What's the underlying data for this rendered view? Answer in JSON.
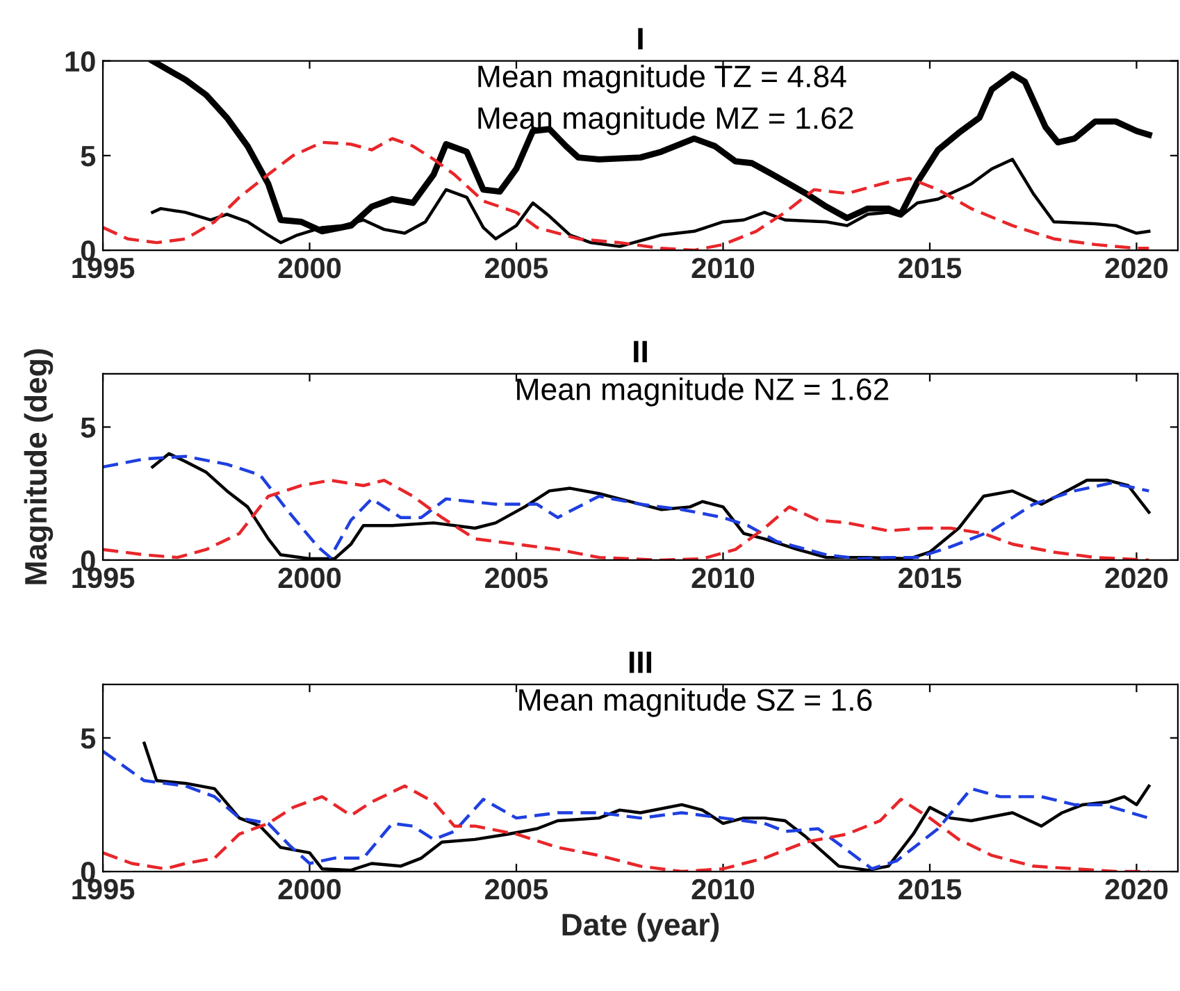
{
  "chart_data": [
    {
      "type": "line",
      "title": "I",
      "xlim": [
        1995,
        2021
      ],
      "xticks": [
        1995,
        2000,
        2005,
        2010,
        2015,
        2020
      ],
      "ylim": [
        0,
        10
      ],
      "yticks": [
        0,
        5,
        10
      ],
      "grid": false,
      "legend": false,
      "annotations": [
        "Mean magnitude TZ = 4.84",
        "Mean magnitude MZ = 1.62"
      ],
      "series": [
        {
          "color": "#000000",
          "line_style": "solid",
          "x": [
            1996.2,
            1997,
            1997.5,
            1998,
            1998.5,
            1999,
            1999.3,
            1999.8,
            2000.3,
            2001,
            2001.5,
            2002,
            2002.5,
            2003,
            2003.3,
            2003.8,
            2004.2,
            2004.6,
            2005,
            2005.4,
            2005.8,
            2006.2,
            2006.5,
            2007,
            2008,
            2008.5,
            2009.3,
            2009.8,
            2010.3,
            2010.7,
            2011.2,
            2012,
            2012.5,
            2013,
            2013.5,
            2014,
            2014.3,
            2014.7,
            2015.2,
            2015.7,
            2016.2,
            2016.5,
            2017,
            2017.3,
            2017.8,
            2018.1,
            2018.5,
            2019,
            2019.5,
            2020,
            2020.3
          ],
          "values": [
            10,
            9,
            8.2,
            7,
            5.5,
            3.5,
            1.6,
            1.5,
            1.0,
            1.3,
            2.3,
            2.7,
            2.5,
            4,
            5.6,
            5.2,
            3.2,
            3.1,
            4.3,
            6.3,
            6.4,
            5.5,
            4.9,
            4.8,
            4.9,
            5.2,
            5.9,
            5.5,
            4.7,
            4.6,
            4.0,
            3.0,
            2.3,
            1.7,
            2.2,
            2.2,
            1.9,
            3.6,
            5.3,
            6.2,
            7.0,
            8.5,
            9.3,
            8.9,
            6.5,
            5.7,
            5.9,
            6.8,
            6.8,
            6.3,
            6.1
          ]
        },
        {
          "color": "#000000",
          "line_style": "solid",
          "x": [
            1996.2,
            1996.4,
            1997,
            1997.6,
            1998,
            1998.5,
            1999,
            1999.3,
            1999.7,
            2000.3,
            2000.8,
            2001.3,
            2001.8,
            2002.3,
            2002.8,
            2003.3,
            2003.8,
            2004.2,
            2004.5,
            2005,
            2005.4,
            2005.8,
            2006.3,
            2006.8,
            2007.5,
            2008,
            2008.5,
            2009.3,
            2010,
            2010.5,
            2011,
            2011.5,
            2012.5,
            2013,
            2013.5,
            2014,
            2014.3,
            2014.7,
            2015.2,
            2015.7,
            2016,
            2016.5,
            2017,
            2017.5,
            2018,
            2019,
            2019.5,
            2020,
            2020.3
          ],
          "values": [
            2,
            2.2,
            2.0,
            1.6,
            1.9,
            1.5,
            0.8,
            0.4,
            0.8,
            1.2,
            1.3,
            1.6,
            1.1,
            0.9,
            1.5,
            3.2,
            2.8,
            1.2,
            0.6,
            1.3,
            2.5,
            1.8,
            0.8,
            0.4,
            0.2,
            0.5,
            0.8,
            1.0,
            1.5,
            1.6,
            2.0,
            1.6,
            1.5,
            1.3,
            1.9,
            2.0,
            1.8,
            2.5,
            2.7,
            3.2,
            3.5,
            4.3,
            4.8,
            3.0,
            1.5,
            1.4,
            1.3,
            0.9,
            1.0
          ]
        },
        {
          "color": "#e8262a",
          "line_style": "dashed",
          "x": [
            1995,
            1995.6,
            1996.3,
            1997,
            1997.7,
            1998.3,
            1999,
            1999.6,
            2000.3,
            2001,
            2001.5,
            2002,
            2002.5,
            2003,
            2003.5,
            2004.2,
            2005,
            2005.5,
            2006.5,
            2007.5,
            2008.5,
            2009.3,
            2010,
            2010.8,
            2011.5,
            2012.2,
            2013,
            2014,
            2014.5,
            2015.2,
            2016,
            2017,
            2018,
            2019,
            2020,
            2020.3
          ],
          "values": [
            1.2,
            0.6,
            0.4,
            0.6,
            1.5,
            2.8,
            4.0,
            5.0,
            5.7,
            5.6,
            5.3,
            5.9,
            5.5,
            4.8,
            4.0,
            2.6,
            2.0,
            1.2,
            0.6,
            0.4,
            0.1,
            0.0,
            0.3,
            1.0,
            2.0,
            3.2,
            3.0,
            3.6,
            3.8,
            3.2,
            2.2,
            1.3,
            0.6,
            0.3,
            0.1,
            0.1
          ]
        }
      ]
    },
    {
      "type": "line",
      "title": "II",
      "ylabel": "Magnitude (deg)",
      "xlim": [
        1995,
        2021
      ],
      "xticks": [
        1995,
        2000,
        2005,
        2010,
        2015,
        2020
      ],
      "ylim": [
        0,
        7
      ],
      "yticks": [
        0,
        5
      ],
      "grid": false,
      "legend": false,
      "annotations": [
        "Mean magnitude NZ = 1.62"
      ],
      "series": [
        {
          "color": "#000000",
          "line_style": "solid",
          "x": [
            1996.2,
            1996.6,
            1997,
            1997.5,
            1998,
            1998.5,
            1999,
            1999.3,
            2000,
            2000.6,
            2001,
            2001.3,
            2002,
            2003,
            2004,
            2004.5,
            2005.2,
            2005.8,
            2006.3,
            2007,
            2007.5,
            2008.5,
            2009.2,
            2009.5,
            2010,
            2010.5,
            2011,
            2011.8,
            2012.5,
            2013.5,
            2014.5,
            2015,
            2015.7,
            2016.3,
            2017,
            2017.7,
            2018.2,
            2018.8,
            2019.3,
            2019.8,
            2020.3
          ],
          "values": [
            3.5,
            4.0,
            3.7,
            3.3,
            2.6,
            2.0,
            0.8,
            0.2,
            0.05,
            0.05,
            0.6,
            1.3,
            1.3,
            1.4,
            1.2,
            1.4,
            2.0,
            2.6,
            2.7,
            2.5,
            2.3,
            1.9,
            2.0,
            2.2,
            2.0,
            1.0,
            0.8,
            0.4,
            0.1,
            0.1,
            0.05,
            0.3,
            1.2,
            2.4,
            2.6,
            2.1,
            2.5,
            3.0,
            3.0,
            2.8,
            1.8
          ]
        },
        {
          "color": "#1f3fe0",
          "line_style": "dashed",
          "x": [
            1995,
            1996,
            1997,
            1998,
            1998.8,
            1999.5,
            2000.2,
            2000.5,
            2001,
            2001.5,
            2002.2,
            2002.7,
            2003.3,
            2004.5,
            2005.5,
            2006,
            2007,
            2008,
            2009,
            2010,
            2010.6,
            2011.3,
            2012.5,
            2013.3,
            2014,
            2014.7,
            2015.5,
            2016.5,
            2017.5,
            2018.5,
            2019.4,
            2020.3
          ],
          "values": [
            3.5,
            3.8,
            3.9,
            3.6,
            3.2,
            1.8,
            0.5,
            0.1,
            1.5,
            2.3,
            1.6,
            1.6,
            2.3,
            2.1,
            2.1,
            1.6,
            2.4,
            2.1,
            1.9,
            1.6,
            1.3,
            0.7,
            0.2,
            0.05,
            0.1,
            0.1,
            0.5,
            1.1,
            2.1,
            2.6,
            2.9,
            2.6
          ]
        },
        {
          "color": "#e8262a",
          "line_style": "dashed",
          "x": [
            1995,
            1996,
            1996.8,
            1997.5,
            1998.3,
            1999,
            1999.8,
            2000.5,
            2001.3,
            2001.8,
            2002.5,
            2003.2,
            2004,
            2005,
            2006,
            2007,
            2008.5,
            2009.5,
            2010.3,
            2011,
            2011.6,
            2012.3,
            2013,
            2014,
            2014.8,
            2015.5,
            2016.3,
            2017,
            2018,
            2019,
            2020.3
          ],
          "values": [
            0.4,
            0.2,
            0.1,
            0.4,
            1.0,
            2.4,
            2.8,
            3.0,
            2.8,
            3.0,
            2.4,
            1.6,
            0.8,
            0.6,
            0.4,
            0.1,
            0.0,
            0.05,
            0.4,
            1.2,
            2.0,
            1.5,
            1.4,
            1.1,
            1.2,
            1.2,
            1.0,
            0.6,
            0.3,
            0.1,
            0.0
          ]
        }
      ]
    },
    {
      "type": "line",
      "title": "III",
      "xlabel": "Date (year)",
      "xlim": [
        1995,
        2021
      ],
      "xticks": [
        1995,
        2000,
        2005,
        2010,
        2015,
        2020
      ],
      "ylim": [
        0,
        7
      ],
      "yticks": [
        0,
        5
      ],
      "grid": false,
      "legend": false,
      "annotations": [
        "Mean magnitude SZ = 1.6"
      ],
      "series": [
        {
          "color": "#000000",
          "line_style": "solid",
          "x": [
            1996,
            1996.3,
            1997,
            1997.7,
            1998.3,
            1998.8,
            1999.3,
            2000,
            2000.3,
            2001,
            2001.5,
            2002.2,
            2002.7,
            2003.2,
            2004,
            2004.8,
            2005.5,
            2006,
            2007,
            2007.5,
            2008,
            2009,
            2009.5,
            2010,
            2010.5,
            2011,
            2011.5,
            2012,
            2012.8,
            2013.5,
            2014,
            2014.6,
            2015,
            2015.5,
            2016,
            2017,
            2017.7,
            2018.2,
            2018.7,
            2019.3,
            2019.7,
            2020,
            2020.3
          ],
          "values": [
            4.8,
            3.4,
            3.3,
            3.1,
            2.0,
            1.7,
            0.9,
            0.7,
            0.1,
            0.05,
            0.3,
            0.2,
            0.5,
            1.1,
            1.2,
            1.4,
            1.6,
            1.9,
            2.0,
            2.3,
            2.2,
            2.5,
            2.3,
            1.8,
            2.0,
            2.0,
            1.9,
            1.3,
            0.2,
            0.05,
            0.2,
            1.4,
            2.4,
            2.0,
            1.9,
            2.2,
            1.7,
            2.2,
            2.5,
            2.6,
            2.8,
            2.5,
            3.2
          ]
        },
        {
          "color": "#1f3fe0",
          "line_style": "dashed",
          "x": [
            1995,
            1996,
            1997,
            1997.7,
            1998.3,
            1999,
            1999.5,
            2000,
            2000.6,
            2001.3,
            2002,
            2002.5,
            2003,
            2003.5,
            2004.2,
            2005,
            2006,
            2007,
            2008,
            2009,
            2010,
            2011,
            2011.5,
            2012.3,
            2013,
            2013.6,
            2014.2,
            2015.2,
            2016,
            2016.7,
            2017.7,
            2018.5,
            2019.2,
            2020.3
          ],
          "values": [
            4.5,
            3.4,
            3.2,
            2.8,
            2.0,
            1.8,
            1.0,
            0.3,
            0.5,
            0.5,
            1.8,
            1.7,
            1.2,
            1.5,
            2.7,
            2.0,
            2.2,
            2.2,
            2.0,
            2.2,
            2.0,
            1.8,
            1.5,
            1.6,
            0.8,
            0.1,
            0.4,
            1.6,
            3.1,
            2.8,
            2.8,
            2.5,
            2.5,
            2.0
          ]
        },
        {
          "color": "#e8262a",
          "line_style": "dashed",
          "x": [
            1995,
            1995.7,
            1996.5,
            1997,
            1997.7,
            1998.3,
            1999,
            1999.6,
            2000.3,
            2001,
            2001.5,
            2002.3,
            2003,
            2003.5,
            2004,
            2005,
            2006,
            2007,
            2008,
            2009,
            2010,
            2011,
            2012,
            2013,
            2013.8,
            2014.3,
            2015,
            2015.7,
            2016.5,
            2017.5,
            2018.5,
            2019.5,
            2020.3
          ],
          "values": [
            0.7,
            0.3,
            0.1,
            0.3,
            0.5,
            1.4,
            1.8,
            2.4,
            2.8,
            2.1,
            2.6,
            3.2,
            2.6,
            1.7,
            1.7,
            1.4,
            0.9,
            0.6,
            0.2,
            0.0,
            0.1,
            0.5,
            1.1,
            1.4,
            1.9,
            2.7,
            2.0,
            1.2,
            0.6,
            0.2,
            0.1,
            0.0,
            0.0
          ]
        }
      ]
    }
  ]
}
